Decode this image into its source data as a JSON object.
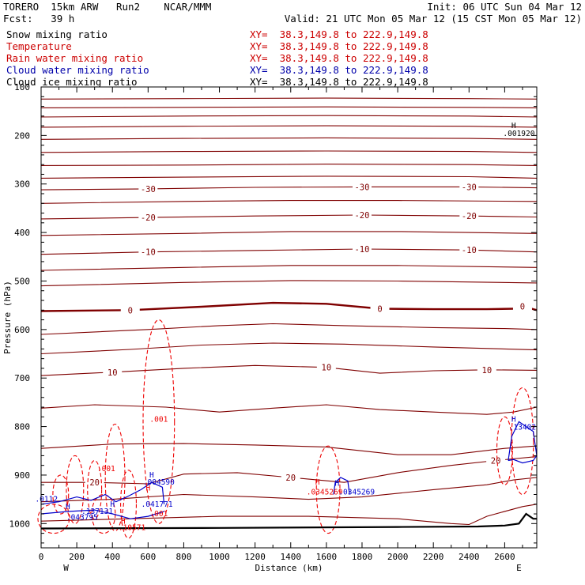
{
  "header": {
    "model": "TORERO  15km ARW   Run2    NCAR/MMM",
    "init": "Init: 06 UTC Sun 04 Mar 12",
    "fcst": "Fcst:   39 h",
    "valid": "Valid: 21 UTC Mon 05 Mar 12 (15 CST Mon 05 Mar 12)"
  },
  "legend": [
    {
      "name": "Snow mixing ratio",
      "xy": "XY=  38.3,149.8 to 222.9,149.8",
      "color": "#000000",
      "xy_color": "#cc0000"
    },
    {
      "name": "Temperature",
      "xy": "XY=  38.3,149.8 to 222.9,149.8",
      "color": "#cc0000",
      "xy_color": "#cc0000"
    },
    {
      "name": "Rain water mixing ratio",
      "xy": "XY=  38.3,149.8 to 222.9,149.8",
      "color": "#cc0000",
      "xy_color": "#cc0000"
    },
    {
      "name": "Cloud water mixing ratio",
      "xy": "XY=  38.3,149.8 to 222.9,149.8",
      "color": "#0000aa",
      "xy_color": "#0000aa"
    },
    {
      "name": "Cloud ice mixing ratio",
      "xy": "XY=  38.3,149.8 to 222.9,149.8",
      "color": "#000000",
      "xy_color": "#000000"
    }
  ],
  "chart_data": {
    "type": "contour-cross-section",
    "xlabel": "Distance (km)",
    "ylabel": "Pressure (hPa)",
    "xlim": [
      0,
      2780
    ],
    "ylim": [
      1050,
      100
    ],
    "x_ticks": [
      0,
      200,
      400,
      600,
      800,
      1000,
      1200,
      1400,
      1600,
      1800,
      2000,
      2200,
      2400,
      2600
    ],
    "y_ticks": [
      100,
      200,
      300,
      400,
      500,
      600,
      700,
      800,
      900,
      1000
    ],
    "x_end_labels": {
      "left": "W",
      "right": "E"
    },
    "colors": {
      "temperature": "#7f0000",
      "rain": "#ee0000",
      "cloud_water": "#0000cc",
      "terrain": "#000000"
    },
    "temperature_isotherms": [
      {
        "label": "",
        "points": [
          [
            0,
            125
          ],
          [
            800,
            124
          ],
          [
            1600,
            123
          ],
          [
            2400,
            124
          ],
          [
            2780,
            125
          ]
        ]
      },
      {
        "label": "",
        "points": [
          [
            0,
            143
          ],
          [
            800,
            142
          ],
          [
            1600,
            141
          ],
          [
            2400,
            142
          ],
          [
            2780,
            143
          ]
        ]
      },
      {
        "label": "",
        "points": [
          [
            0,
            162
          ],
          [
            800,
            160
          ],
          [
            1600,
            159
          ],
          [
            2400,
            160
          ],
          [
            2780,
            162
          ]
        ]
      },
      {
        "label": "",
        "points": [
          [
            0,
            183
          ],
          [
            800,
            181
          ],
          [
            1600,
            180
          ],
          [
            2400,
            181
          ],
          [
            2780,
            183
          ]
        ]
      },
      {
        "label": "",
        "points": [
          [
            0,
            208
          ],
          [
            800,
            206
          ],
          [
            1600,
            205
          ],
          [
            2400,
            206
          ],
          [
            2780,
            208
          ]
        ]
      },
      {
        "label": "",
        "points": [
          [
            0,
            235
          ],
          [
            800,
            233
          ],
          [
            1600,
            232
          ],
          [
            2400,
            233
          ],
          [
            2780,
            235
          ]
        ]
      },
      {
        "label": "",
        "points": [
          [
            0,
            262
          ],
          [
            800,
            261
          ],
          [
            1600,
            259
          ],
          [
            2400,
            260
          ],
          [
            2780,
            262
          ]
        ]
      },
      {
        "label": "",
        "points": [
          [
            0,
            288
          ],
          [
            800,
            286
          ],
          [
            1600,
            284
          ],
          [
            2400,
            285
          ],
          [
            2780,
            288
          ]
        ]
      },
      {
        "label": "-30",
        "points": [
          [
            0,
            312
          ],
          [
            600,
            310
          ],
          [
            1200,
            307
          ],
          [
            1800,
            306
          ],
          [
            2400,
            306
          ],
          [
            2780,
            308
          ]
        ]
      },
      {
        "label": "",
        "points": [
          [
            0,
            340
          ],
          [
            800,
            336
          ],
          [
            1400,
            334
          ],
          [
            2000,
            334
          ],
          [
            2780,
            336
          ]
        ]
      },
      {
        "label": "-20",
        "points": [
          [
            0,
            372
          ],
          [
            600,
            369
          ],
          [
            1200,
            366
          ],
          [
            1800,
            364
          ],
          [
            2400,
            366
          ],
          [
            2780,
            368
          ]
        ]
      },
      {
        "label": "",
        "points": [
          [
            0,
            406
          ],
          [
            800,
            402
          ],
          [
            1400,
            398
          ],
          [
            2000,
            398
          ],
          [
            2780,
            402
          ]
        ]
      },
      {
        "label": "-10",
        "points": [
          [
            0,
            445
          ],
          [
            600,
            440
          ],
          [
            1200,
            437
          ],
          [
            1800,
            434
          ],
          [
            2400,
            436
          ],
          [
            2780,
            440
          ]
        ]
      },
      {
        "label": "",
        "points": [
          [
            0,
            478
          ],
          [
            800,
            472
          ],
          [
            1400,
            468
          ],
          [
            2000,
            468
          ],
          [
            2780,
            472
          ]
        ]
      },
      {
        "label": "",
        "points": [
          [
            0,
            510
          ],
          [
            800,
            503
          ],
          [
            1400,
            499
          ],
          [
            2000,
            500
          ],
          [
            2780,
            504
          ]
        ]
      },
      {
        "label": "0",
        "points": [
          [
            0,
            562
          ],
          [
            500,
            560
          ],
          [
            900,
            553
          ],
          [
            1300,
            545
          ],
          [
            1600,
            547
          ],
          [
            1900,
            557
          ],
          [
            2200,
            558
          ],
          [
            2500,
            558
          ],
          [
            2650,
            557
          ],
          [
            2700,
            552
          ],
          [
            2780,
            560
          ]
        ]
      },
      {
        "label": "",
        "points": [
          [
            0,
            610
          ],
          [
            600,
            600
          ],
          [
            1000,
            592
          ],
          [
            1300,
            588
          ],
          [
            1700,
            592
          ],
          [
            2200,
            596
          ],
          [
            2600,
            598
          ],
          [
            2780,
            600
          ]
        ]
      },
      {
        "label": "",
        "points": [
          [
            0,
            650
          ],
          [
            500,
            641
          ],
          [
            900,
            632
          ],
          [
            1300,
            628
          ],
          [
            1700,
            630
          ],
          [
            2200,
            636
          ],
          [
            2600,
            640
          ],
          [
            2780,
            642
          ]
        ]
      },
      {
        "label": "10",
        "points": [
          [
            0,
            695
          ],
          [
            400,
            688
          ],
          [
            800,
            680
          ],
          [
            1200,
            674
          ],
          [
            1600,
            678
          ],
          [
            1900,
            690
          ],
          [
            2200,
            685
          ],
          [
            2500,
            683
          ],
          [
            2780,
            684
          ]
        ]
      },
      {
        "label": "",
        "points": [
          [
            0,
            762
          ],
          [
            300,
            755
          ],
          [
            700,
            760
          ],
          [
            1000,
            770
          ],
          [
            1300,
            762
          ],
          [
            1600,
            755
          ],
          [
            1900,
            765
          ],
          [
            2200,
            770
          ],
          [
            2500,
            775
          ],
          [
            2650,
            770
          ],
          [
            2780,
            760
          ]
        ]
      },
      {
        "label": "",
        "points": [
          [
            0,
            845
          ],
          [
            400,
            836
          ],
          [
            800,
            835
          ],
          [
            1200,
            838
          ],
          [
            1600,
            842
          ],
          [
            2000,
            858
          ],
          [
            2300,
            858
          ],
          [
            2600,
            845
          ],
          [
            2780,
            840
          ]
        ]
      },
      {
        "label": "20",
        "points": [
          [
            0,
            915
          ],
          [
            300,
            915
          ],
          [
            600,
            918
          ],
          [
            800,
            898
          ],
          [
            1100,
            895
          ],
          [
            1400,
            905
          ],
          [
            1700,
            915
          ],
          [
            2000,
            895
          ],
          [
            2300,
            880
          ],
          [
            2550,
            870
          ],
          [
            2780,
            862
          ]
        ]
      },
      {
        "label": "",
        "points": [
          [
            0,
            955
          ],
          [
            400,
            950
          ],
          [
            800,
            940
          ],
          [
            1200,
            945
          ],
          [
            1500,
            950
          ],
          [
            1800,
            945
          ],
          [
            2200,
            930
          ],
          [
            2500,
            920
          ],
          [
            2650,
            910
          ],
          [
            2780,
            905
          ]
        ]
      },
      {
        "label": "",
        "points": [
          [
            0,
            995
          ],
          [
            500,
            990
          ],
          [
            1000,
            985
          ],
          [
            1500,
            985
          ],
          [
            2000,
            990
          ],
          [
            2300,
            1000
          ],
          [
            2400,
            1002
          ],
          [
            2500,
            985
          ],
          [
            2700,
            965
          ],
          [
            2780,
            960
          ]
        ]
      }
    ],
    "rain_labels": [
      {
        "text": ".001",
        "x": 660,
        "p": 790
      },
      {
        "text": ".001",
        "x": 365,
        "p": 892
      },
      {
        "text": ".001",
        "x": 660,
        "p": 985
      },
      {
        "text": "H",
        "x": 600,
        "p": 932
      },
      {
        "text": "H",
        "x": 1550,
        "p": 920
      },
      {
        "text": ".0345269",
        "x": 1590,
        "p": 940
      },
      {
        "text": ".10571",
        "x": 510,
        "p": 1013
      },
      {
        "text": "H",
        "x": 460,
        "p": 1000
      }
    ],
    "cloud_water_labels": [
      {
        "text": "H",
        "x": 620,
        "p": 905
      },
      {
        "text": ".004590",
        "x": 660,
        "p": 920
      },
      {
        "text": ".041771",
        "x": 650,
        "p": 965
      },
      {
        "text": "H",
        "x": 400,
        "p": 965
      },
      {
        "text": ".137131",
        "x": 315,
        "p": 980
      },
      {
        "text": ".043795",
        "x": 230,
        "p": 992
      },
      {
        "text": "H",
        "x": 150,
        "p": 970
      },
      {
        "text": ".0112",
        "x": 30,
        "p": 955
      },
      {
        "text": "H",
        "x": 1660,
        "p": 922
      },
      {
        "text": ".0345269",
        "x": 1770,
        "p": 940
      },
      {
        "text": "H",
        "x": 2650,
        "p": 790
      },
      {
        "text": ".13402",
        "x": 2700,
        "p": 806
      }
    ],
    "snow_labels": [
      {
        "text": "H",
        "x": 2650,
        "p": 185
      },
      {
        "text": ".001920",
        "x": 2680,
        "p": 201
      }
    ],
    "terrain": [
      [
        0,
        1010
      ],
      [
        1000,
        1009
      ],
      [
        2000,
        1007
      ],
      [
        2450,
        1006
      ],
      [
        2600,
        1004
      ],
      [
        2680,
        1000
      ],
      [
        2720,
        980
      ],
      [
        2760,
        990
      ],
      [
        2780,
        990
      ]
    ]
  }
}
